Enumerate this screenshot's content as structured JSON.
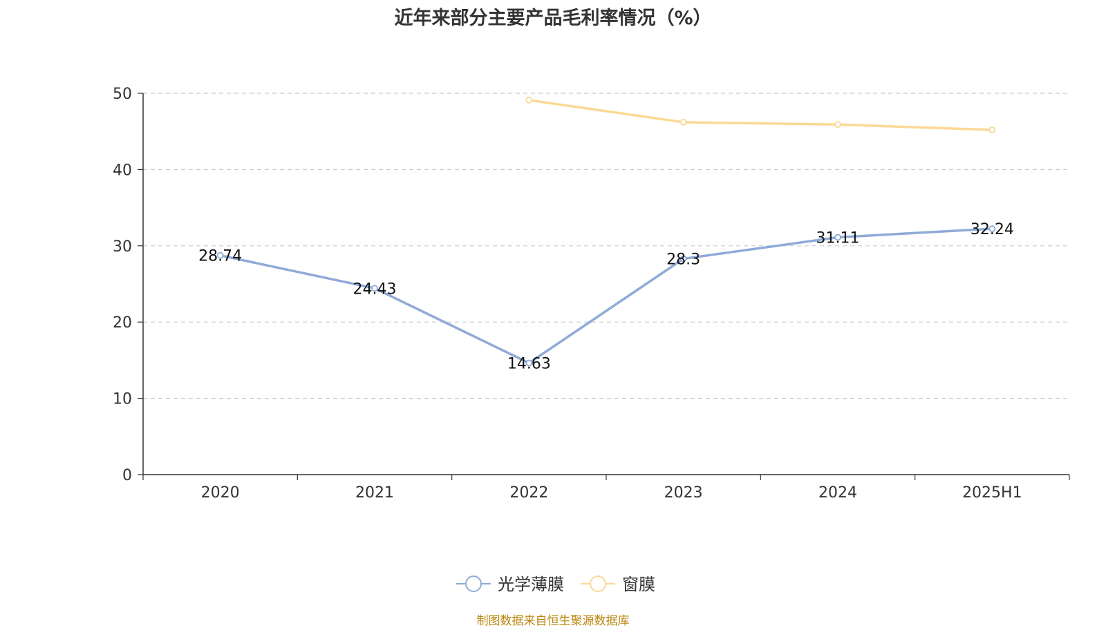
{
  "source_note": "制图数据来自恒生聚源数据库",
  "chart_data": {
    "type": "line",
    "title": "近年来部分主要产品毛利率情况（%）",
    "categories": [
      "2020",
      "2021",
      "2022",
      "2023",
      "2024",
      "2025H1"
    ],
    "ylim": [
      0,
      50
    ],
    "yticks": [
      "0",
      "10",
      "20",
      "30",
      "40",
      "50"
    ],
    "grid": true,
    "legend_position": "bottom",
    "series": [
      {
        "name": "光学薄膜",
        "color": "#8eaad8",
        "values": [
          28.74,
          24.43,
          14.63,
          28.3,
          31.11,
          32.24
        ],
        "labels": [
          "28.74",
          "24.43",
          "14.63",
          "28.3",
          "31.11",
          "32.24"
        ]
      },
      {
        "name": "窗膜",
        "color": "#fbd995",
        "values": [
          null,
          null,
          49.1,
          46.2,
          45.9,
          45.2
        ],
        "labels": []
      }
    ]
  }
}
